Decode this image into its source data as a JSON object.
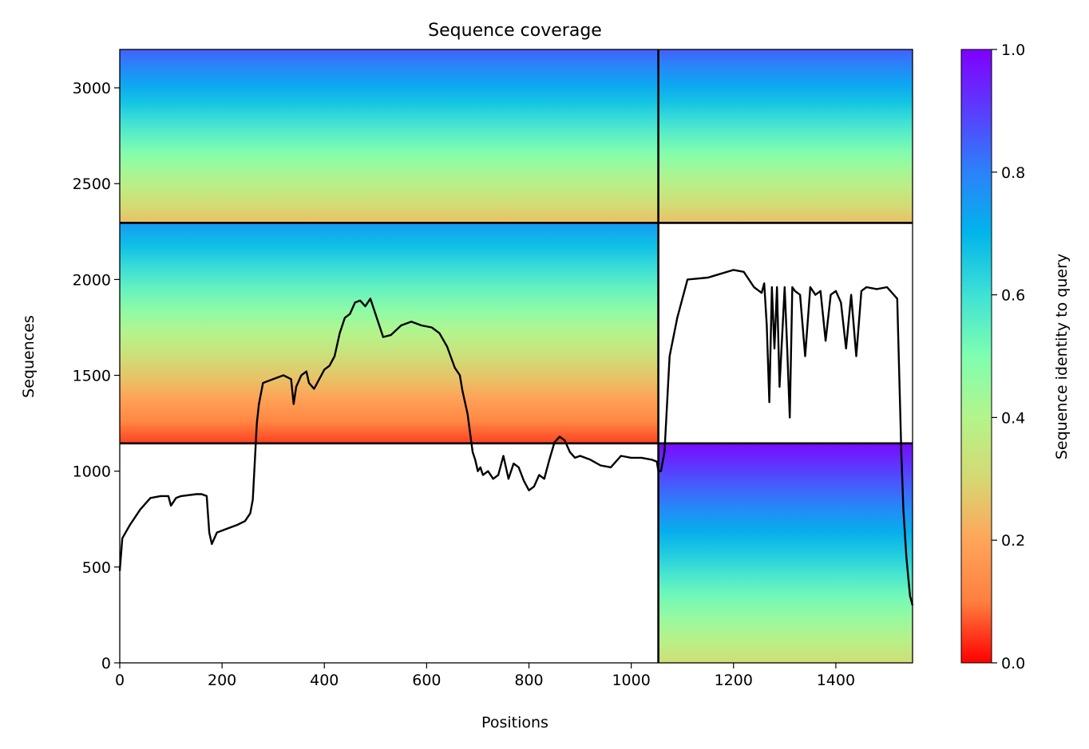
{
  "chart_data": {
    "type": "heatmap",
    "title": "Sequence coverage",
    "xlabel": "Positions",
    "ylabel": "Sequences",
    "xlim": [
      0,
      1550
    ],
    "ylim": [
      0,
      3200
    ],
    "x_ticks": [
      0,
      200,
      400,
      600,
      800,
      1000,
      1200,
      1400
    ],
    "y_ticks": [
      0,
      500,
      1000,
      1500,
      2000,
      2500,
      3000
    ],
    "colorbar": {
      "label": "Sequence identity to query",
      "range": [
        0,
        1
      ],
      "ticks": [
        "0.0",
        "0.2",
        "0.4",
        "0.6",
        "0.8",
        "1.0"
      ],
      "colormap": "rainbow (red at 0, violet at 1)",
      "stops": [
        "#ff0000",
        "#ff7f3f",
        "#ffa55a",
        "#d6d872",
        "#b4f48b",
        "#7ffeb0",
        "#3fe1d5",
        "#00b5eb",
        "#2b82fa",
        "#5a3dfe",
        "#8000ff"
      ]
    },
    "block_boundaries": {
      "x": [
        1053
      ],
      "y": [
        1145,
        2295
      ]
    },
    "blocks": [
      {
        "x": [
          0,
          1053
        ],
        "y": [
          2295,
          3200
        ],
        "identity_top": 0.85,
        "identity_bottom": 0.25
      },
      {
        "x": [
          1053,
          1550
        ],
        "y": [
          2295,
          3200
        ],
        "identity_top": 0.85,
        "identity_bottom": 0.25
      },
      {
        "x": [
          0,
          1053
        ],
        "y": [
          1145,
          2295
        ],
        "identity_top": 0.75,
        "identity_bottom": 0.05
      },
      {
        "x": [
          1053,
          1550
        ],
        "y": [
          0,
          1145
        ],
        "identity_top": 0.98,
        "identity_bottom": 0.32
      }
    ],
    "series": [
      {
        "type": "line",
        "color": "#000000",
        "x": [
          0,
          5,
          20,
          40,
          60,
          80,
          95,
          100,
          110,
          120,
          150,
          160,
          170,
          175,
          180,
          190,
          210,
          230,
          245,
          255,
          260,
          265,
          268,
          272,
          280,
          300,
          320,
          335,
          340,
          345,
          355,
          365,
          370,
          380,
          400,
          410,
          420,
          430,
          440,
          450,
          460,
          470,
          480,
          490,
          500,
          515,
          530,
          550,
          570,
          590,
          610,
          625,
          640,
          655,
          665,
          670,
          680,
          690,
          695,
          700,
          705,
          710,
          720,
          730,
          740,
          750,
          760,
          770,
          780,
          790,
          800,
          810,
          820,
          830,
          840,
          850,
          860,
          870,
          880,
          890,
          900,
          920,
          940,
          960,
          980,
          1000,
          1020,
          1040,
          1050,
          1053,
          1058,
          1065,
          1075,
          1090,
          1110,
          1150,
          1200,
          1220,
          1240,
          1255,
          1260,
          1265,
          1270,
          1275,
          1280,
          1285,
          1290,
          1300,
          1305,
          1310,
          1315,
          1320,
          1330,
          1340,
          1350,
          1360,
          1370,
          1380,
          1390,
          1400,
          1410,
          1420,
          1430,
          1440,
          1450,
          1460,
          1480,
          1500,
          1520,
          1528,
          1532,
          1538,
          1545,
          1550
        ],
        "y": [
          480,
          650,
          720,
          800,
          860,
          870,
          870,
          820,
          860,
          870,
          880,
          880,
          870,
          680,
          620,
          680,
          700,
          720,
          740,
          780,
          850,
          1100,
          1250,
          1350,
          1460,
          1480,
          1500,
          1480,
          1350,
          1440,
          1500,
          1520,
          1460,
          1430,
          1530,
          1550,
          1600,
          1720,
          1800,
          1820,
          1880,
          1890,
          1860,
          1900,
          1820,
          1700,
          1710,
          1760,
          1780,
          1760,
          1750,
          1720,
          1650,
          1540,
          1500,
          1420,
          1300,
          1100,
          1060,
          1000,
          1020,
          980,
          1000,
          960,
          980,
          1080,
          960,
          1040,
          1020,
          950,
          900,
          920,
          980,
          960,
          1060,
          1150,
          1180,
          1160,
          1100,
          1070,
          1080,
          1060,
          1030,
          1020,
          1080,
          1070,
          1070,
          1060,
          1050,
          1000,
          1000,
          1100,
          1600,
          1800,
          2000,
          2010,
          2050,
          2040,
          1960,
          1930,
          1980,
          1760,
          1360,
          1960,
          1640,
          1960,
          1440,
          1960,
          1640,
          1280,
          1960,
          1940,
          1920,
          1600,
          1960,
          1920,
          1940,
          1680,
          1920,
          1940,
          1880,
          1640,
          1920,
          1600,
          1940,
          1960,
          1950,
          1960,
          1900,
          1100,
          800,
          550,
          350,
          300
        ]
      }
    ]
  }
}
